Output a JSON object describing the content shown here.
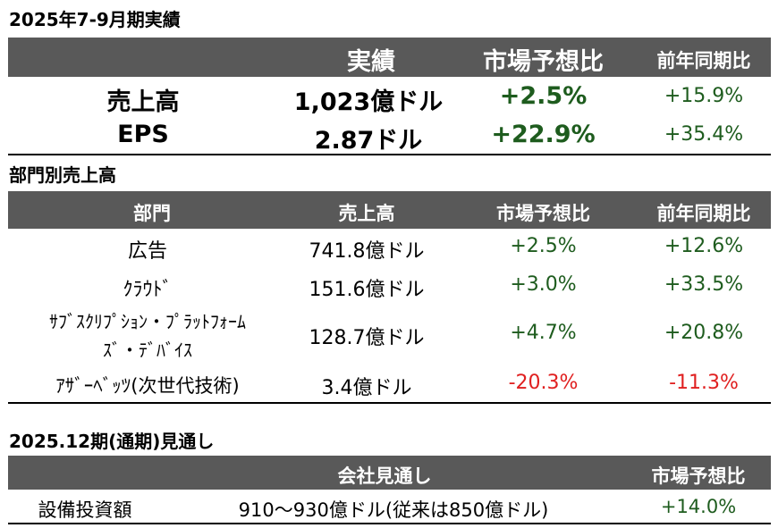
{
  "summary": {
    "title": "2025年7-9月期実績",
    "headers": [
      "実績",
      "市場予想比",
      "前年同期比"
    ],
    "rows": [
      {
        "label": "売上高",
        "actual": "1,023億ドル",
        "vs_consensus": "+2.5%",
        "yoy": "+15.9%"
      },
      {
        "label": "EPS",
        "actual": "2.87ドル",
        "vs_consensus": "+22.9%",
        "yoy": "+35.4%"
      }
    ]
  },
  "segments": {
    "title": "部門別売上高",
    "headers": [
      "部門",
      "売上高",
      "市場予想比",
      "前年同期比"
    ],
    "rows": [
      {
        "name_lines": [
          "広告"
        ],
        "revenue": "741.8億ドル",
        "vs_consensus": "+2.5%",
        "yoy": "+12.6%"
      },
      {
        "name_lines": [
          "ｸﾗｳﾄﾞ"
        ],
        "revenue": "151.6億ドル",
        "vs_consensus": "+3.0%",
        "yoy": "+33.5%"
      },
      {
        "name_lines": [
          "ｻﾌﾞｽｸﾘﾌﾟｼｮﾝ・ﾌﾟﾗｯﾄﾌｫｰﾑ",
          "ｽﾞ・ﾃﾞﾊﾞｲｽ"
        ],
        "revenue": "128.7億ドル",
        "vs_consensus": "+4.7%",
        "yoy": "+20.8%"
      },
      {
        "name_lines": [
          "ｱｻﾞｰﾍﾞｯﾂ(次世代技術)"
        ],
        "revenue": "3.4億ドル",
        "vs_consensus": "-20.3%",
        "yoy": "-11.3%"
      }
    ]
  },
  "outlook": {
    "title": "2025.12期(通期)見通し",
    "headers": [
      "会社見通し",
      "市場予想比"
    ],
    "rows": [
      {
        "label": "設備投資額",
        "guidance": "910～930億ドル(従来は850億ドル)",
        "vs_consensus": "+14.0%"
      }
    ]
  },
  "colors": {
    "header_bg": "#595959",
    "positive": "#1e5c1e",
    "negative": "#e02020"
  }
}
